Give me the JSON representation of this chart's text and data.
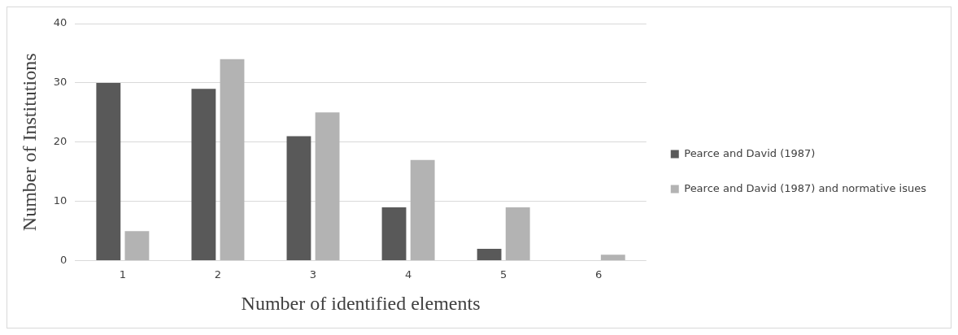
{
  "chart_data": {
    "type": "bar",
    "xlabel": "Number of identified elements",
    "ylabel": "Number of Institutions",
    "categories": [
      "1",
      "2",
      "3",
      "4",
      "5",
      "6"
    ],
    "series": [
      {
        "name": "Pearce and David (1987)",
        "color": "#595959",
        "values": [
          30,
          29,
          21,
          9,
          2,
          0
        ]
      },
      {
        "name": "Pearce and David (1987) and normative isues",
        "color": "#b3b3b3",
        "values": [
          5,
          34,
          25,
          17,
          9,
          1
        ]
      }
    ],
    "ylim": [
      0,
      40
    ],
    "yticks": [
      0,
      10,
      20,
      30,
      40
    ],
    "grid": "y",
    "legend": "right"
  }
}
